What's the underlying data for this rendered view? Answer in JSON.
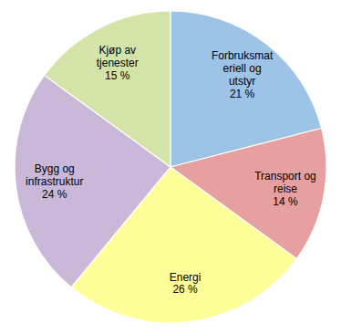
{
  "chart_data": {
    "type": "pie",
    "categories": [
      "Forbruksmat\neriell og\nutstyr\n21 %",
      "Transport og\nreise\n14 %",
      "Energi\n26 %",
      "Bygg og\ninfrastruktur\n24 %",
      "Kjøp av\ntjenester\n15 %"
    ],
    "values": [
      21,
      14,
      26,
      24,
      15
    ],
    "colors": [
      "#9DC3E6",
      "#E6A0A0",
      "#FFFF99",
      "#C9B8D8",
      "#D4E4A8"
    ]
  }
}
